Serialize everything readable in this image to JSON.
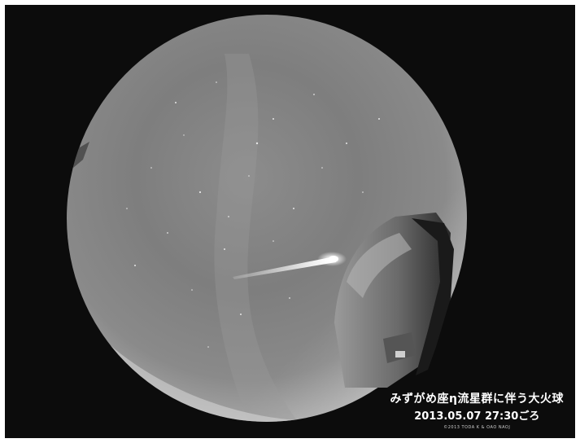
{
  "caption": {
    "title": "みずがめ座η流星群に伴う大火球",
    "datetime": "2013.05.07 27:30ごろ",
    "credit": "©2013 TODA K & OAO NAOJ"
  }
}
